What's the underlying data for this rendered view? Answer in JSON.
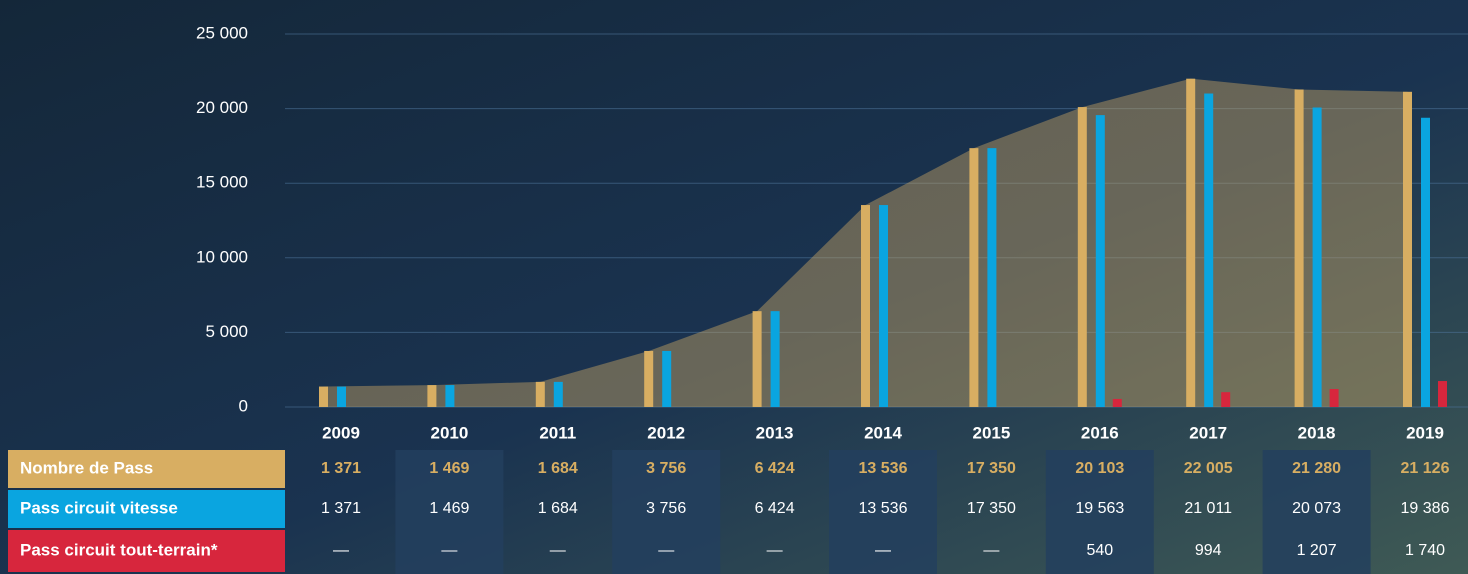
{
  "chart_data": {
    "type": "bar",
    "categories": [
      "2009",
      "2010",
      "2011",
      "2012",
      "2013",
      "2014",
      "2015",
      "2016",
      "2017",
      "2018",
      "2019"
    ],
    "series": [
      {
        "name": "Nombre de Pass",
        "color": "#d8ae62",
        "values": [
          1371,
          1469,
          1684,
          3756,
          6424,
          13536,
          17350,
          20103,
          22005,
          21280,
          21126
        ],
        "value_labels": [
          "1 371",
          "1 469",
          "1 684",
          "3 756",
          "6 424",
          "13 536",
          "17 350",
          "20 103",
          "22 005",
          "21 280",
          "21 126"
        ]
      },
      {
        "name": "Pass circuit vitesse",
        "color": "#0aa5e0",
        "values": [
          1371,
          1469,
          1684,
          3756,
          6424,
          13536,
          17350,
          19563,
          21011,
          20073,
          19386
        ],
        "value_labels": [
          "1 371",
          "1 469",
          "1 684",
          "3 756",
          "6 424",
          "13 536",
          "17 350",
          "19 563",
          "21 011",
          "20 073",
          "19 386"
        ]
      },
      {
        "name": "Pass circuit tout-terrain*",
        "color": "#d7263d",
        "values": [
          null,
          null,
          null,
          null,
          null,
          null,
          null,
          540,
          994,
          1207,
          1740
        ],
        "value_labels": [
          "—",
          "—",
          "—",
          "—",
          "—",
          "—",
          "—",
          "540",
          "994",
          "1 207",
          "1 740"
        ]
      }
    ],
    "ylim": [
      0,
      25000
    ],
    "yticks": [
      0,
      {
        "value": 5000,
        "label": "5 000"
      },
      {
        "value": 10000,
        "label": "10 000"
      },
      {
        "value": 15000,
        "label": "15 000"
      },
      {
        "value": 20000,
        "label": "20 000"
      },
      {
        "value": 25000,
        "label": "25 000"
      }
    ],
    "grid": true
  }
}
